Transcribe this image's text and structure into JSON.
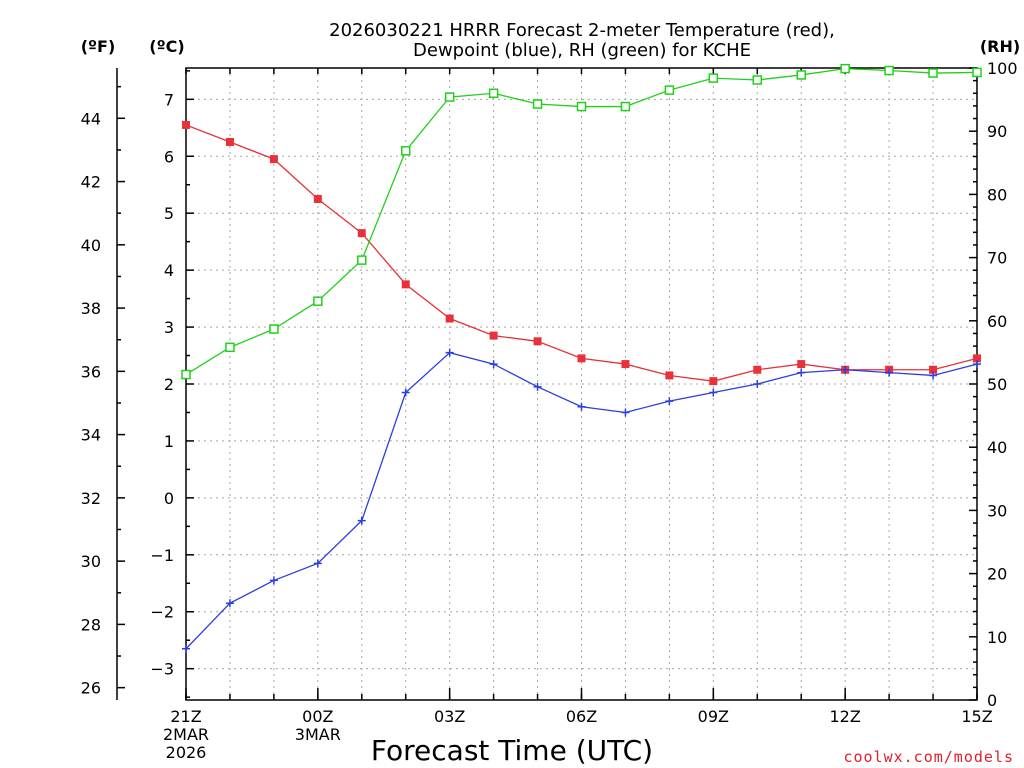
{
  "chart_data": {
    "type": "line",
    "title_line1": "2026030221 HRRR Forecast 2-meter Temperature (red),",
    "title_line2": "Dewpoint (blue), RH (green) for KCHE",
    "unit_f": "(ºF)",
    "unit_c": "(ºC)",
    "unit_rh": "(RH)",
    "xlabel": "Forecast Time (UTC)",
    "credit": "coolwx.com/models",
    "x_hours": [
      0,
      1,
      2,
      3,
      4,
      5,
      6,
      7,
      8,
      9,
      10,
      11,
      12,
      13,
      14,
      15,
      16,
      17,
      18
    ],
    "xlim": [
      0,
      18
    ],
    "x_ticks": [
      {
        "h": 0,
        "label": "21Z",
        "sub1": "2MAR",
        "sub2": "2026"
      },
      {
        "h": 3,
        "label": "00Z",
        "sub1": "3MAR",
        "sub2": ""
      },
      {
        "h": 6,
        "label": "03Z",
        "sub1": "",
        "sub2": ""
      },
      {
        "h": 9,
        "label": "06Z",
        "sub1": "",
        "sub2": ""
      },
      {
        "h": 12,
        "label": "09Z",
        "sub1": "",
        "sub2": ""
      },
      {
        "h": 15,
        "label": "12Z",
        "sub1": "",
        "sub2": ""
      },
      {
        "h": 18,
        "label": "15Z",
        "sub1": "",
        "sub2": ""
      }
    ],
    "c_axis": {
      "lim": [
        -3.55,
        7.55
      ],
      "ticks": [
        "-3",
        "-2",
        "-1",
        "0",
        "1",
        "2",
        "3",
        "4",
        "5",
        "6",
        "7"
      ]
    },
    "f_axis": {
      "ticks": [
        "26",
        "28",
        "30",
        "32",
        "34",
        "36",
        "38",
        "40",
        "42",
        "44"
      ]
    },
    "rh_axis": {
      "lim": [
        0,
        100
      ],
      "ticks": [
        "0",
        "10",
        "20",
        "30",
        "40",
        "50",
        "60",
        "70",
        "80",
        "90",
        "100"
      ]
    },
    "series": [
      {
        "name": "Temperature",
        "color": "#e8313a",
        "axis": "c",
        "marker": "filled-square",
        "values": [
          6.55,
          6.25,
          5.95,
          5.25,
          4.65,
          3.75,
          3.15,
          2.85,
          2.75,
          2.45,
          2.35,
          2.15,
          2.05,
          2.25,
          2.35,
          2.25,
          2.25,
          2.25,
          2.45
        ]
      },
      {
        "name": "Dewpoint",
        "color": "#2a3fe0",
        "axis": "c",
        "marker": "plus",
        "values": [
          -2.65,
          -1.85,
          -1.45,
          -1.15,
          -0.4,
          1.85,
          2.55,
          2.35,
          1.95,
          1.6,
          1.5,
          1.7,
          1.85,
          2.0,
          2.2,
          2.25,
          2.2,
          2.15,
          2.35
        ]
      },
      {
        "name": "RH",
        "color": "#22d01a",
        "axis": "rh",
        "marker": "open-square",
        "values": [
          51.5,
          55.8,
          58.7,
          63.1,
          69.6,
          86.9,
          95.4,
          96.0,
          94.3,
          93.9,
          93.9,
          96.5,
          98.4,
          98.1,
          98.9,
          99.9,
          99.6,
          99.2,
          99.3
        ]
      }
    ]
  }
}
